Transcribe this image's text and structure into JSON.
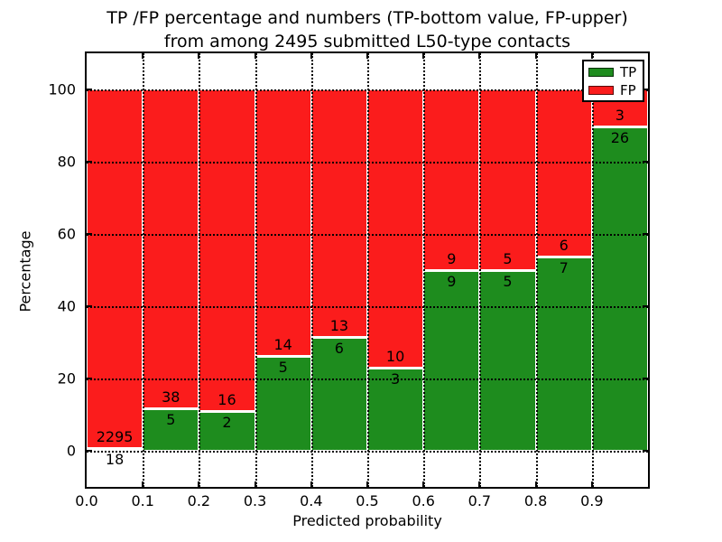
{
  "chart_data": {
    "type": "bar",
    "variant": "stacked-percentage",
    "title_line1": "TP /FP percentage and numbers (TP-bottom value, FP-upper)",
    "title_line2": "from among 2495 submitted L50-type contacts",
    "xlabel": "Predicted probability",
    "ylabel": "Percentage",
    "total_submitted": 2495,
    "categories": [
      "0.0",
      "0.1",
      "0.2",
      "0.3",
      "0.4",
      "0.5",
      "0.6",
      "0.7",
      "0.8",
      "0.9"
    ],
    "bin_width": 0.1,
    "series": [
      {
        "name": "TP",
        "color": "#1e8c1e",
        "values": [
          18,
          5,
          2,
          5,
          6,
          3,
          9,
          5,
          7,
          26
        ]
      },
      {
        "name": "FP",
        "color": "#fb1c1c",
        "values": [
          2295,
          38,
          16,
          14,
          13,
          10,
          9,
          5,
          6,
          3
        ]
      }
    ],
    "x_tick_labels": [
      "0.0",
      "0.1",
      "0.2",
      "0.3",
      "0.4",
      "0.5",
      "0.6",
      "0.7",
      "0.8",
      "0.9"
    ],
    "y_tick_labels": [
      "0",
      "20",
      "40",
      "60",
      "80",
      "100"
    ],
    "y_ticks": [
      0,
      20,
      40,
      60,
      80,
      100
    ],
    "xlim": [
      0.0,
      1.0
    ],
    "ylim": [
      -10,
      110
    ],
    "grid": "dotted",
    "bar_edge_color": "#ffffff",
    "legend": {
      "position": "upper right",
      "entries": [
        {
          "label": "TP",
          "color": "#1e8c1e"
        },
        {
          "label": "FP",
          "color": "#fb1c1c"
        }
      ]
    }
  }
}
